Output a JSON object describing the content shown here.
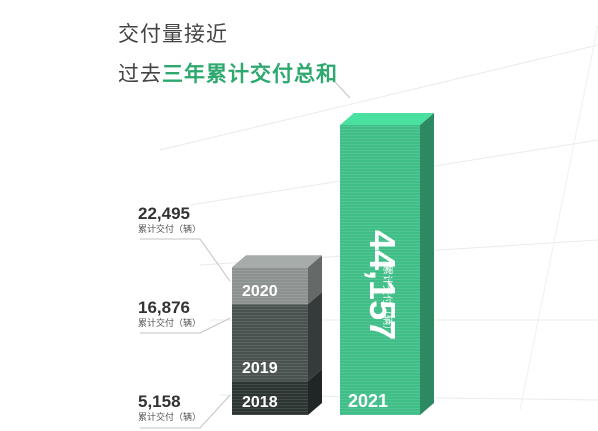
{
  "headline": {
    "line1": "交付量接近",
    "line2_prefix": "过去",
    "line2_accent": "三年累计交付总和"
  },
  "colors": {
    "accent": "#2ea86f",
    "green_bar": "#3fbe88",
    "seg_2018": "#2d3533",
    "seg_2019": "#4a5250",
    "seg_2020": "#8c9290"
  },
  "chart_data": {
    "type": "bar",
    "title": "",
    "stacked_bar": {
      "segments": [
        {
          "label": "2018",
          "value": 5158,
          "value_text": "5,158",
          "unit": "累计交付（辆）"
        },
        {
          "label": "2019",
          "value": 16876,
          "value_text": "16,876",
          "unit": "累计交付（辆）"
        },
        {
          "label": "2020",
          "value": 22495,
          "value_text": "22,495",
          "unit": "累计交付（辆）"
        }
      ]
    },
    "single_bar": {
      "label": "2021",
      "value": 44157,
      "value_text": "44,157",
      "unit": "累计交付（辆）"
    }
  }
}
